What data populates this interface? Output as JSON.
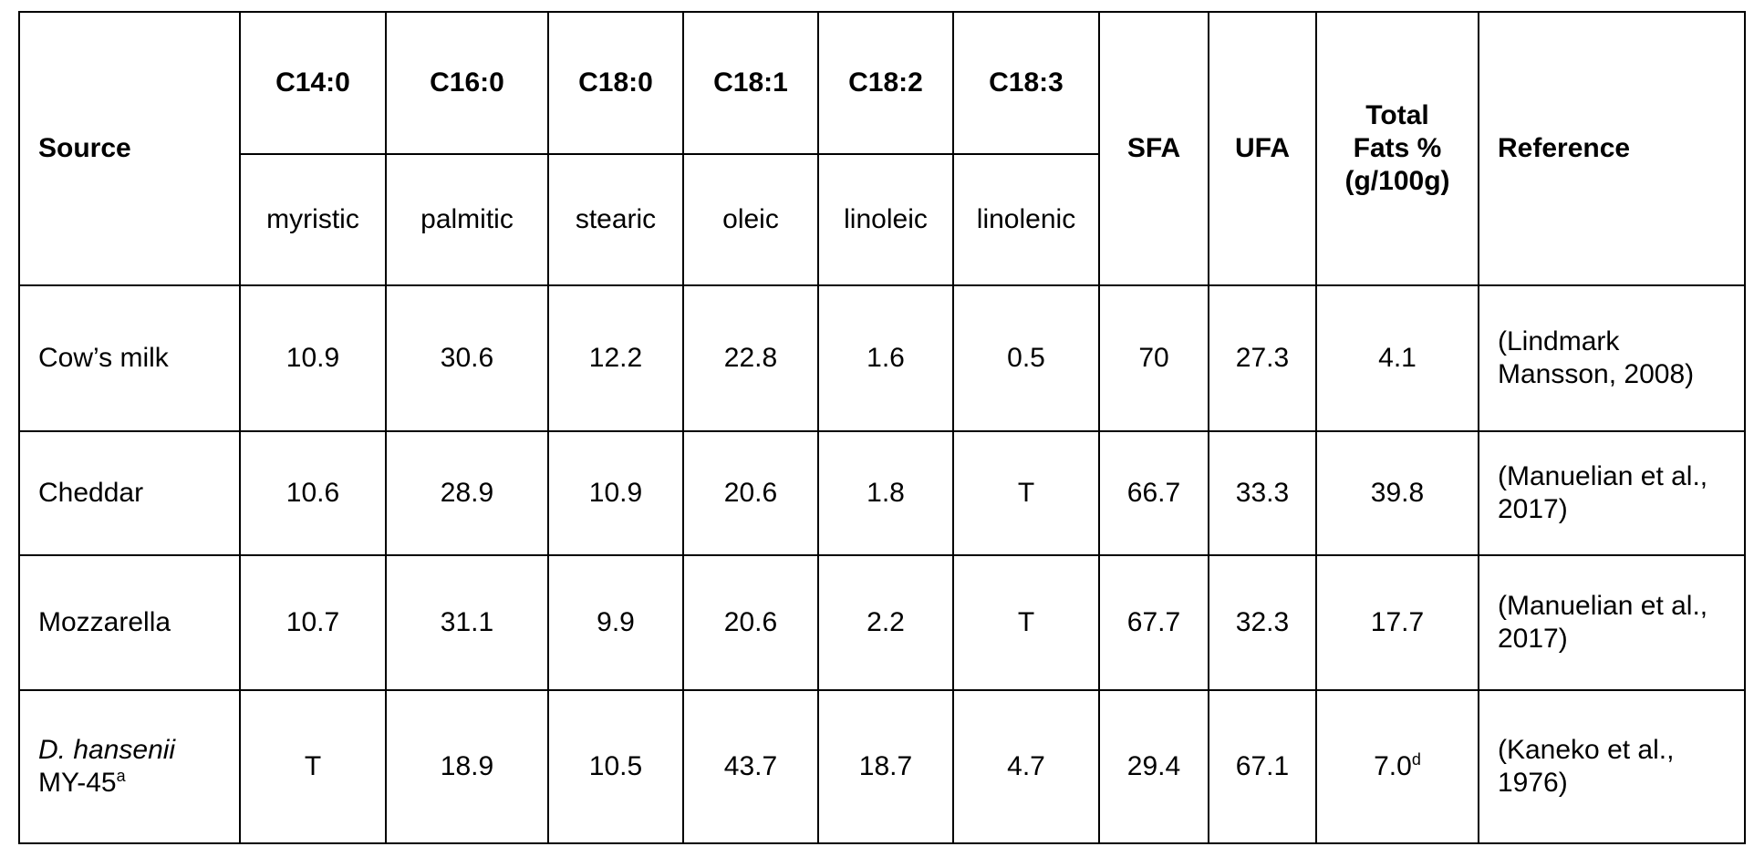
{
  "table": {
    "headers": {
      "source": "Source",
      "codes": [
        "C14:0",
        "C16:0",
        "C18:0",
        "C18:1",
        "C18:2",
        "C18:3"
      ],
      "names": [
        "myristic",
        "palmitic",
        "stearic",
        "oleic",
        "linoleic",
        "linolenic"
      ],
      "sfa": "SFA",
      "ufa": "UFA",
      "total_fats": "Total Fats % (g/100g)",
      "reference": "Reference"
    },
    "rows": [
      {
        "source": "Cow’s milk",
        "values": [
          "10.9",
          "30.6",
          "12.2",
          "22.8",
          "1.6",
          "0.5"
        ],
        "sfa": "70",
        "ufa": "27.3",
        "total": "4.1",
        "reference": "(Lindmark Mansson, 2008)"
      },
      {
        "source": "Cheddar",
        "values": [
          "10.6",
          "28.9",
          "10.9",
          "20.6",
          "1.8",
          "T"
        ],
        "sfa": "66.7",
        "ufa": "33.3",
        "total": "39.8",
        "reference": "(Manuelian et al., 2017)"
      },
      {
        "source": "Mozzarella",
        "values": [
          "10.7",
          "31.1",
          "9.9",
          "20.6",
          "2.2",
          "T"
        ],
        "sfa": "67.7",
        "ufa": "32.3",
        "total": "17.7",
        "reference": "(Manuelian et al., 2017)"
      },
      {
        "source_italic": "D. hansenii",
        "source_rest": "MY-45",
        "source_sup": "a",
        "values": [
          "T",
          "18.9",
          "10.5",
          "43.7",
          "18.7",
          "4.7"
        ],
        "sfa": "29.4",
        "ufa": "67.1",
        "total": "7.0",
        "total_sup": "d",
        "reference": "(Kaneko et al., 1976)"
      }
    ]
  }
}
